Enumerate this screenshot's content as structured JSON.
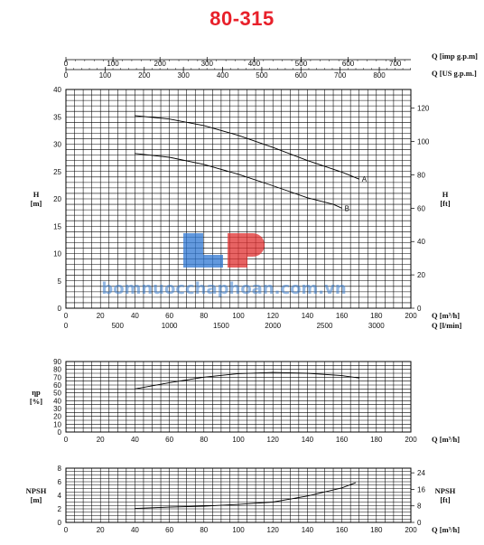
{
  "title": "80-315",
  "watermark": {
    "text": "bomnuocchaphoan.com.vn",
    "logo_name": "lp-logo",
    "colors": {
      "blue": "#2f78d4",
      "red": "#e03030",
      "text": "#3d7fd0"
    }
  },
  "colors": {
    "title": "#e8202a",
    "grid": "#000000",
    "curve": "#000000"
  },
  "top_axes": {
    "imp": {
      "label": "Q [imp g.p.m]",
      "ticks": [
        0,
        100,
        200,
        300,
        400,
        500,
        600,
        700
      ]
    },
    "us": {
      "label": "Q [US g.p.m.]",
      "ticks": [
        0,
        100,
        200,
        300,
        400,
        500,
        600,
        700,
        800
      ]
    }
  },
  "chart_data": [
    {
      "type": "line",
      "name": "head",
      "ylabel_left": [
        "H",
        "[m]"
      ],
      "ylabel_right": [
        "H",
        "[ft]"
      ],
      "ylim": [
        0,
        40
      ],
      "yticks": [
        0,
        5,
        10,
        15,
        20,
        25,
        30,
        35,
        40
      ],
      "right_yticks": [
        0,
        20,
        40,
        60,
        80,
        100,
        120
      ],
      "xlim": [
        0,
        200
      ],
      "xticks": [
        0,
        20,
        40,
        60,
        80,
        100,
        120,
        140,
        160,
        180,
        200
      ],
      "xlabel": "Q [m³/h]",
      "secondary_x": {
        "label": "Q [l/min]",
        "ticks": [
          0,
          500,
          1000,
          1500,
          2000,
          2500,
          3000
        ]
      },
      "grid": true,
      "series": [
        {
          "name": "A",
          "x": [
            40,
            60,
            80,
            100,
            120,
            140,
            160,
            170
          ],
          "y": [
            35.2,
            34.6,
            33.4,
            31.6,
            29.4,
            27.0,
            24.9,
            23.6
          ]
        },
        {
          "name": "B",
          "x": [
            40,
            60,
            80,
            100,
            120,
            140,
            155,
            160
          ],
          "y": [
            28.3,
            27.6,
            26.3,
            24.5,
            22.4,
            20.2,
            19.0,
            18.3
          ]
        }
      ]
    },
    {
      "type": "line",
      "name": "efficiency",
      "ylabel_left": [
        "ηp",
        "[%]"
      ],
      "ylim": [
        0,
        90
      ],
      "yticks": [
        0,
        10,
        20,
        30,
        40,
        50,
        60,
        70,
        80,
        90
      ],
      "xlim": [
        0,
        200
      ],
      "xticks": [
        0,
        20,
        40,
        60,
        80,
        100,
        120,
        140,
        160,
        180,
        200
      ],
      "xlabel": "Q [m³/h]",
      "grid": true,
      "series": [
        {
          "x": [
            40,
            60,
            80,
            100,
            120,
            140,
            160,
            170
          ],
          "y": [
            55,
            63,
            70,
            74.5,
            76,
            75,
            72,
            69
          ]
        }
      ]
    },
    {
      "type": "line",
      "name": "npsh",
      "ylabel_left": [
        "NPSH",
        "[m]"
      ],
      "ylabel_right": [
        "NPSH",
        "[ft]"
      ],
      "ylim": [
        0,
        8
      ],
      "yticks": [
        0,
        2,
        4,
        6,
        8
      ],
      "right_yticks": [
        0,
        8,
        16,
        24
      ],
      "xlim": [
        0,
        200
      ],
      "xticks": [
        0,
        20,
        40,
        60,
        80,
        100,
        120,
        140,
        160,
        180,
        200
      ],
      "xlabel": "Q [m³/h]",
      "grid": true,
      "series": [
        {
          "x": [
            40,
            60,
            80,
            100,
            120,
            140,
            160,
            168
          ],
          "y": [
            2.05,
            2.25,
            2.4,
            2.65,
            3.0,
            3.9,
            5.1,
            5.85
          ]
        }
      ]
    }
  ]
}
